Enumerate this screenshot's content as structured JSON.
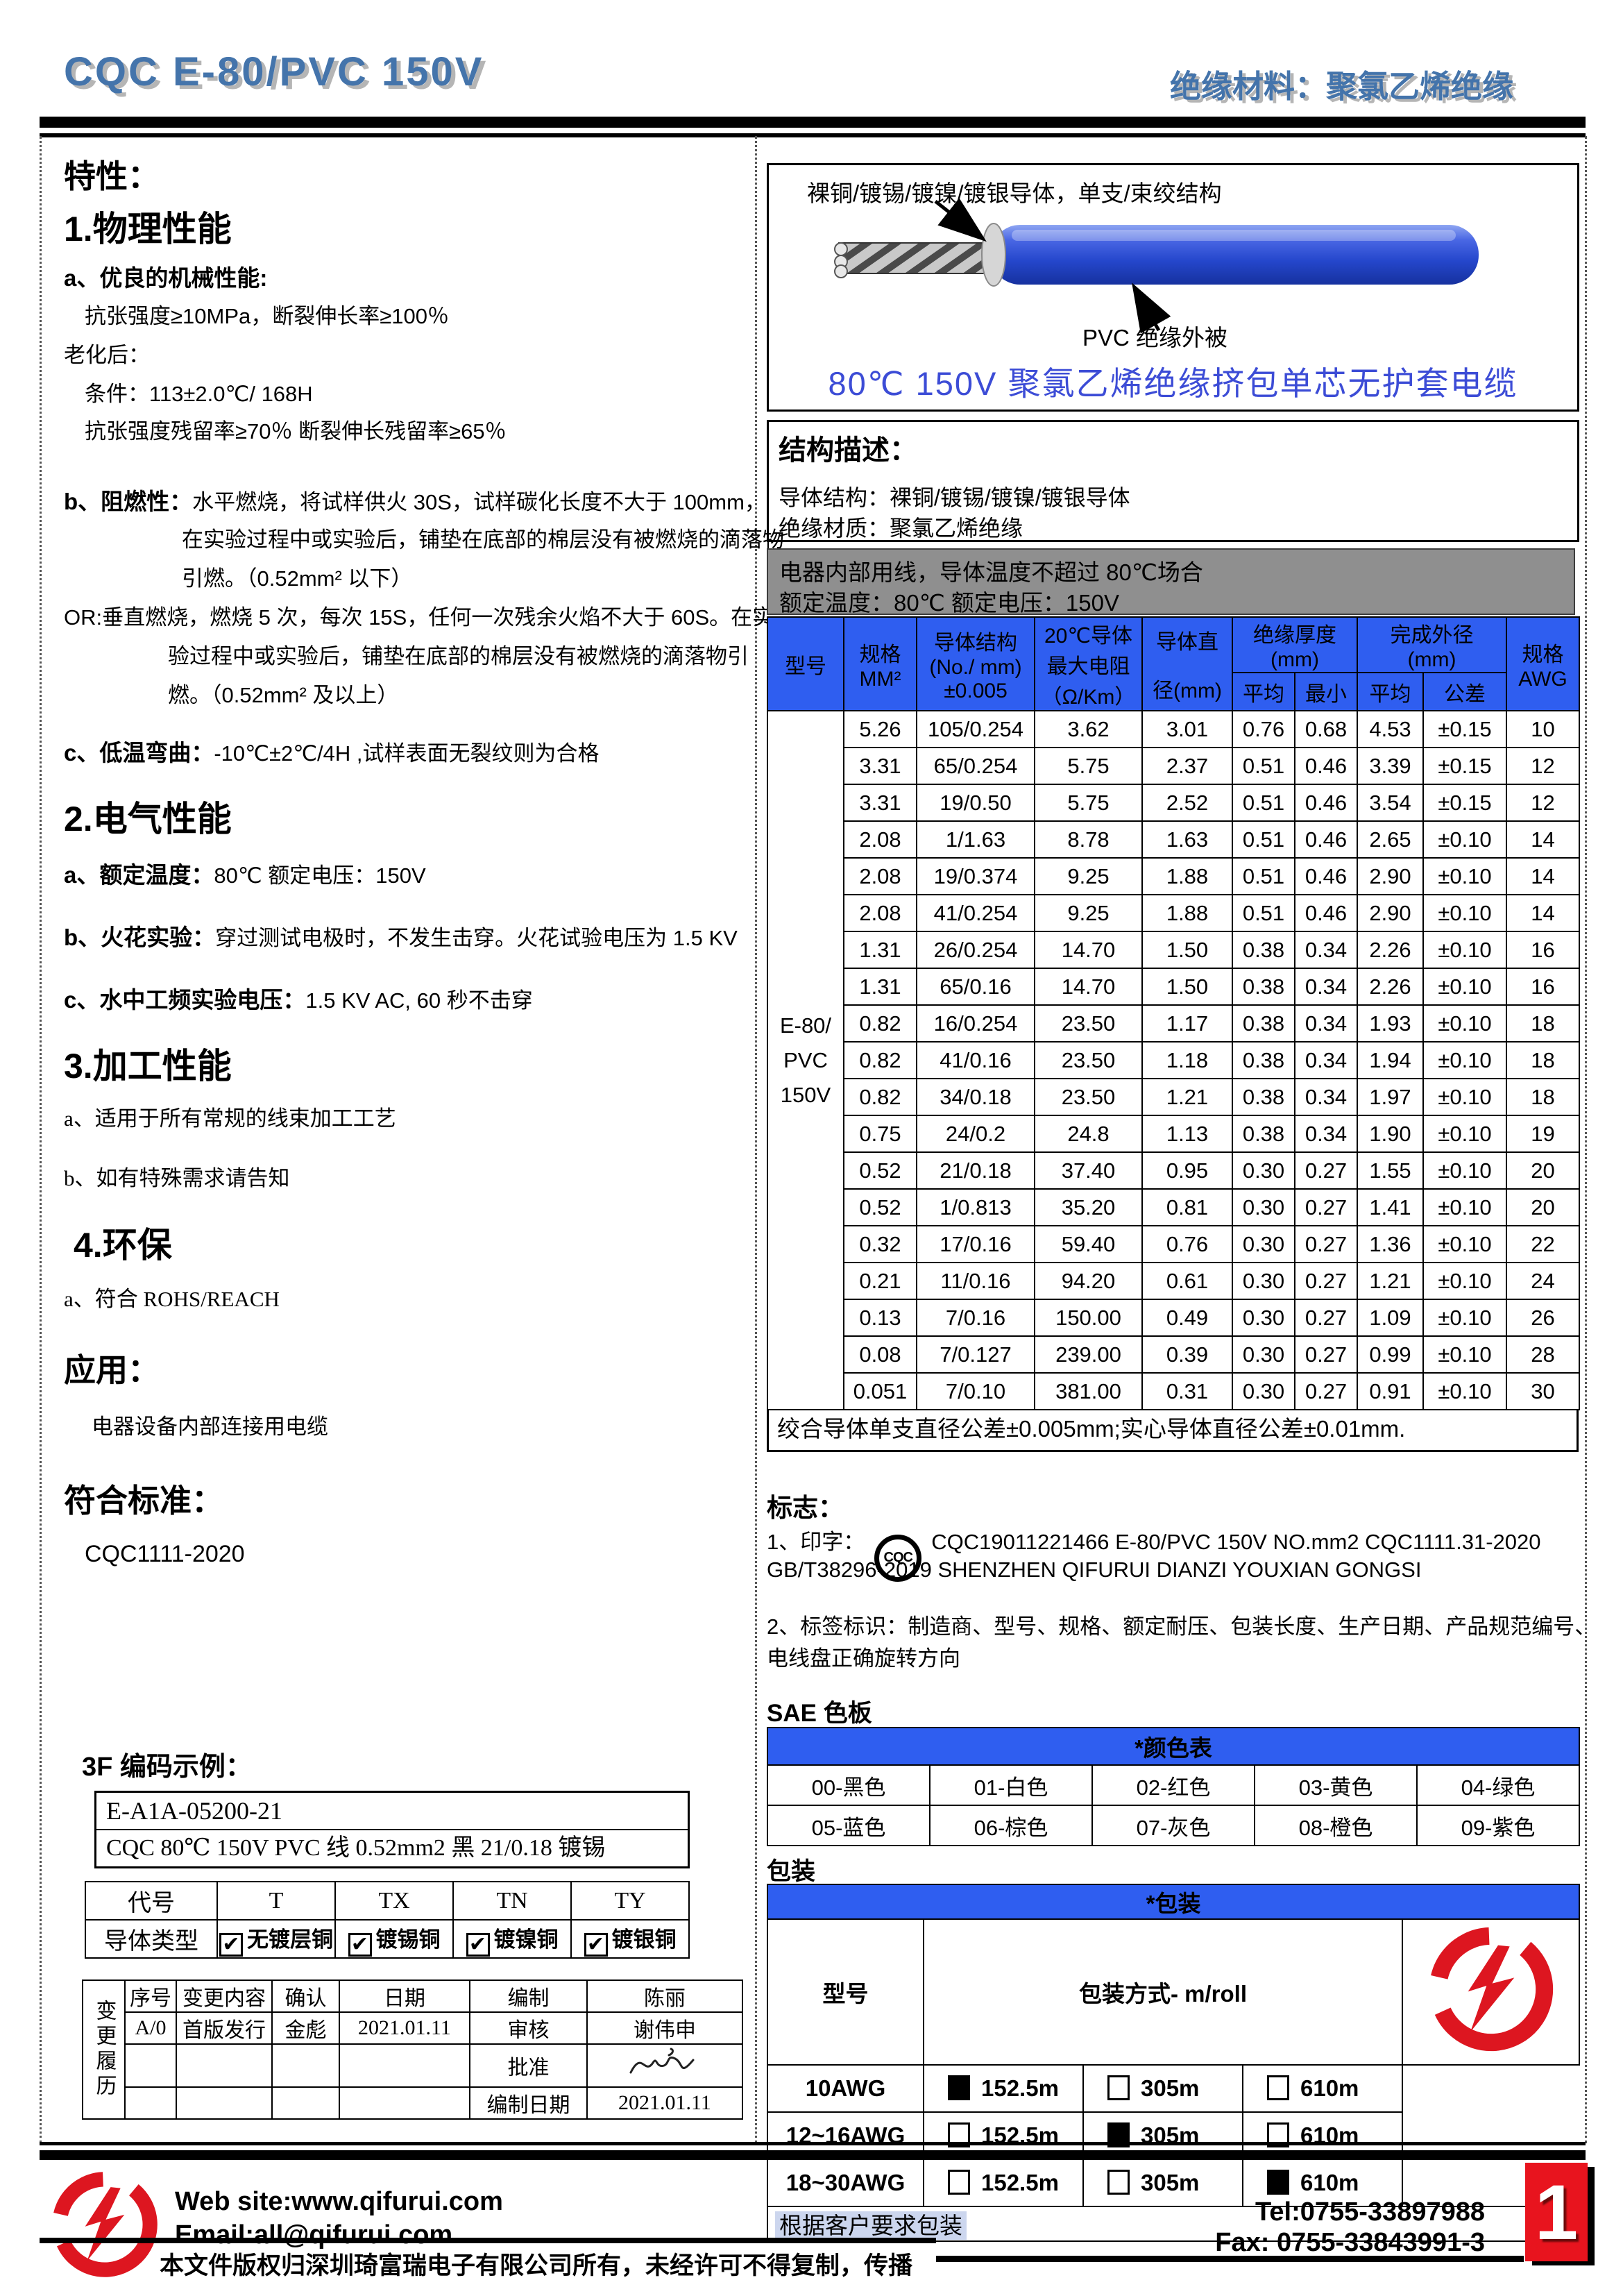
{
  "header": {
    "title": "CQC E-80/PVC 150V",
    "subtitle": "绝缘材料：聚氯乙烯绝缘"
  },
  "left": {
    "traits_title": "特性：",
    "physical_title": "1.物理性能",
    "physical_a_lead": "a、优良的机械性能:",
    "physical_tensile": "抗张强度≥10MPa，断裂伸长率≥100％",
    "aging_label": "老化后：",
    "aging_condition": "条件：113±2.0℃/ 168H",
    "aging_result": "抗张强度残留率≥70％  断裂伸长残留率≥65％",
    "flame_lead": "b、阻燃性：",
    "flame_line1_rest": "水平燃烧，将试样供火 30S，试样碳化长度不大于 100mm，",
    "flame_line2": "在实验过程中或实验后，铺垫在底部的棉层没有被燃烧的滴落物",
    "flame_line3": "引燃。（0.52mm² 以下）",
    "or_line1": "OR:垂直燃烧，燃烧 5 次，每次 15S，任何一次残余火焰不大于 60S。在实",
    "or_line2": "验过程中或实验后，铺垫在底部的棉层没有被燃烧的滴落物引",
    "or_line3": "燃。（0.52mm² 及以上）",
    "cold_lead": "c、低温弯曲：",
    "cold_rest": "-10℃±2℃/4H ,试样表面无裂纹则为合格",
    "electrical_title": "2.电气性能",
    "elec_a_lead": "a、额定温度：",
    "elec_a_rest": "80℃   额定电压：150V",
    "elec_b_lead": "b、火花实验：",
    "elec_b_rest": "穿过测试电极时，不发生击穿。火花试验电压为 1.5 KV",
    "elec_c_lead": "c、水中工频实验电压：",
    "elec_c_rest": "1.5 KV AC, 60 秒不击穿",
    "process_title": "3.加工性能",
    "process_a": "a、适用于所有常规的线束加工工艺",
    "process_b": "b、如有特殊需求请告知",
    "env_title": "4.环保",
    "env_a": "a、符合 ROHS/REACH",
    "app_title": "应用：",
    "app_line": "电器设备内部连接用电缆",
    "standard_title": "符合标准：",
    "standard_value": "CQC1111-2020",
    "code_title": "3F 编码示例：",
    "code_line1": "E-A1A-05200-21",
    "code_line2": "CQC 80℃  150V PVC 线  0.52mm2  黑  21/0.18 镀锡",
    "daihao": {
      "headers": [
        "代号",
        "T",
        "TX",
        "TN",
        "TY"
      ],
      "row_label": "导体类型",
      "options": [
        "无镀层铜",
        "镀锡铜",
        "镀镍铜",
        "镀银铜"
      ]
    },
    "change": {
      "side_label": "变更履历",
      "headers": [
        "序号",
        "变更内容",
        "确认",
        "日期"
      ],
      "row1": [
        "A/0",
        "首版发行",
        "金彪",
        "2021.01.11"
      ],
      "right_labels": [
        "编制",
        "审核",
        "批准",
        "编制日期"
      ],
      "right_values": [
        "陈丽",
        "谢伟申",
        "",
        "2021.01.11"
      ]
    }
  },
  "diagram": {
    "conductor_label": "裸铜/镀锡/镀镍/镀银导体，单支/束绞结构",
    "insulation_label": "PVC  绝缘外被",
    "caption": "80℃  150V 聚氯乙烯绝缘挤包单芯无护套电缆"
  },
  "structure": {
    "title": "结构描述：",
    "line1": "导体结构：裸铜/镀锡/镀镍/镀银导体",
    "line2": "绝缘材质：聚氯乙烯绝缘"
  },
  "spec_table": {
    "usage_line1": "电器内部用线，导体温度不超过  80℃场合",
    "usage_line2": "额定温度：80℃  额定电压：150V",
    "headers": {
      "model": "型号",
      "size": [
        "规格",
        "MM²"
      ],
      "structure": [
        "导体结构",
        "(No./ mm)",
        "±0.005"
      ],
      "resistance": [
        "20℃导体",
        "最大电阻",
        "（Ω/Km）"
      ],
      "diameter": [
        "导体直",
        "径(mm)"
      ],
      "insulation_group": [
        "绝缘厚度",
        "(mm)"
      ],
      "sub_avg": "平均",
      "sub_min": "最小",
      "od_group": [
        "完成外径",
        "(mm)"
      ],
      "sub_avg2": "平均",
      "sub_tol": "公差",
      "awg": [
        "规格",
        "AWG"
      ]
    },
    "model_lines": [
      "E-80/",
      "PVC",
      "150V"
    ],
    "rows": [
      [
        "5.26",
        "105/0.254",
        "3.62",
        "3.01",
        "0.76",
        "0.68",
        "4.53",
        "±0.15",
        "10"
      ],
      [
        "3.31",
        "65/0.254",
        "5.75",
        "2.37",
        "0.51",
        "0.46",
        "3.39",
        "±0.15",
        "12"
      ],
      [
        "3.31",
        "19/0.50",
        "5.75",
        "2.52",
        "0.51",
        "0.46",
        "3.54",
        "±0.15",
        "12"
      ],
      [
        "2.08",
        "1/1.63",
        "8.78",
        "1.63",
        "0.51",
        "0.46",
        "2.65",
        "±0.10",
        "14"
      ],
      [
        "2.08",
        "19/0.374",
        "9.25",
        "1.88",
        "0.51",
        "0.46",
        "2.90",
        "±0.10",
        "14"
      ],
      [
        "2.08",
        "41/0.254",
        "9.25",
        "1.88",
        "0.51",
        "0.46",
        "2.90",
        "±0.10",
        "14"
      ],
      [
        "1.31",
        "26/0.254",
        "14.70",
        "1.50",
        "0.38",
        "0.34",
        "2.26",
        "±0.10",
        "16"
      ],
      [
        "1.31",
        "65/0.16",
        "14.70",
        "1.50",
        "0.38",
        "0.34",
        "2.26",
        "±0.10",
        "16"
      ],
      [
        "0.82",
        "16/0.254",
        "23.50",
        "1.17",
        "0.38",
        "0.34",
        "1.93",
        "±0.10",
        "18"
      ],
      [
        "0.82",
        "41/0.16",
        "23.50",
        "1.18",
        "0.38",
        "0.34",
        "1.94",
        "±0.10",
        "18"
      ],
      [
        "0.82",
        "34/0.18",
        "23.50",
        "1.21",
        "0.38",
        "0.34",
        "1.97",
        "±0.10",
        "18"
      ],
      [
        "0.75",
        "24/0.2",
        "24.8",
        "1.13",
        "0.38",
        "0.34",
        "1.90",
        "±0.10",
        "19"
      ],
      [
        "0.52",
        "21/0.18",
        "37.40",
        "0.95",
        "0.30",
        "0.27",
        "1.55",
        "±0.10",
        "20"
      ],
      [
        "0.52",
        "1/0.813",
        "35.20",
        "0.81",
        "0.30",
        "0.27",
        "1.41",
        "±0.10",
        "20"
      ],
      [
        "0.32",
        "17/0.16",
        "59.40",
        "0.76",
        "0.30",
        "0.27",
        "1.36",
        "±0.10",
        "22"
      ],
      [
        "0.21",
        "11/0.16",
        "94.20",
        "0.61",
        "0.30",
        "0.27",
        "1.21",
        "±0.10",
        "24"
      ],
      [
        "0.13",
        "7/0.16",
        "150.00",
        "0.49",
        "0.30",
        "0.27",
        "1.09",
        "±0.10",
        "26"
      ],
      [
        "0.08",
        "7/0.127",
        "239.00",
        "0.39",
        "0.30",
        "0.27",
        "0.99",
        "±0.10",
        "28"
      ],
      [
        "0.051",
        "7/0.10",
        "381.00",
        "0.31",
        "0.30",
        "0.27",
        "0.91",
        "±0.10",
        "30"
      ]
    ],
    "note": "绞合导体单支直径公差±0.005mm;实心导体直径公差±0.01mm."
  },
  "marking": {
    "title": "标志：",
    "item1_lead": "1、印字：",
    "cqc_mark": "CQC",
    "item1_text": "CQC19011221466   E-80/PVC   150V   NO.mm2   CQC1111.31-2020",
    "item1_text2": "GB/T38296-2019 SHENZHEN QIFURUI DIANZI YOUXIAN GONGSI",
    "item2_line1": "2、标签标识：制造商、型号、规格、额定耐压、包装长度、生产日期、产品规范编号、",
    "item2_line2": "电线盘正确旋转方向"
  },
  "sae": {
    "title": "SAE 色板",
    "table_title": "*颜色表",
    "rows": [
      [
        "00-黑色",
        "01-白色",
        "02-红色",
        "03-黄色",
        "04-绿色"
      ],
      [
        "05-蓝色",
        "06-棕色",
        "07-灰色",
        "08-橙色",
        "09-紫色"
      ]
    ]
  },
  "packing": {
    "title": "包装",
    "table_title": "*包装",
    "col_model": "型号",
    "col_method": "包装方式- m/roll",
    "rows": [
      {
        "model": "10AWG",
        "options": [
          {
            "label": "152.5m",
            "selected": true
          },
          {
            "label": "305m",
            "selected": false
          },
          {
            "label": "610m",
            "selected": false
          }
        ]
      },
      {
        "model": "12~16AWG",
        "options": [
          {
            "label": "152.5m",
            "selected": false
          },
          {
            "label": "305m",
            "selected": true
          },
          {
            "label": "610m",
            "selected": false
          }
        ]
      },
      {
        "model": "18~30AWG",
        "options": [
          {
            "label": "152.5m",
            "selected": false
          },
          {
            "label": "305m",
            "selected": false
          },
          {
            "label": "610m",
            "selected": true
          }
        ]
      }
    ],
    "note": "根据客户要求包装"
  },
  "footer": {
    "website": "Web site:www.qifurui.com",
    "email": "Email:all@qifurui.com",
    "tel": "Tel:0755-33897988",
    "fax": "Fax: 0755-33843991-3",
    "page": "1",
    "copyright": "本文件版权归深圳琦富瑞电子有限公司所有，未经许可不得复制，传播"
  },
  "colors": {
    "title_blue": "#4474ab",
    "table_header_blue": "#2f5ef0",
    "caption_blue": "#3c4cd6",
    "bar_gray": "#8f8f8f",
    "logo_red": "#dd1620",
    "page_box_red": "#e8141e",
    "note_highlight": "#ccd6ee"
  }
}
